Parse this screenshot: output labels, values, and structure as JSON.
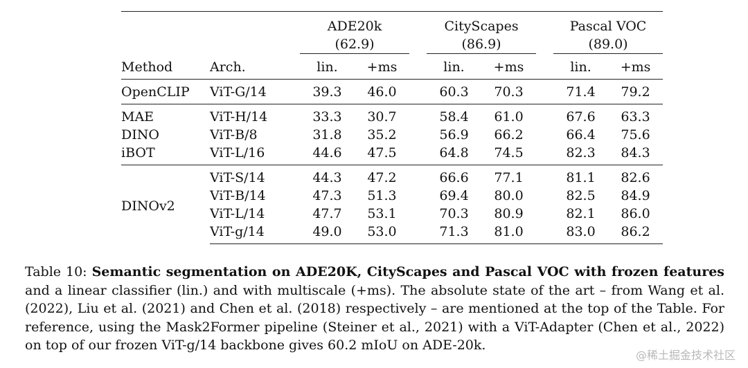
{
  "table": {
    "datasets": [
      {
        "name": "ADE20k",
        "sota": "(62.9)"
      },
      {
        "name": "CityScapes",
        "sota": "(86.9)"
      },
      {
        "name": "Pascal VOC",
        "sota": "(89.0)"
      }
    ],
    "headers": {
      "method": "Method",
      "arch": "Arch.",
      "lin": "lin.",
      "ms": "+ms"
    },
    "groups": [
      {
        "method": "OpenCLIP",
        "rows": [
          {
            "method": "OpenCLIP",
            "arch": "ViT-G/14",
            "values": [
              "39.3",
              "46.0",
              "60.3",
              "70.3",
              "71.4",
              "79.2"
            ]
          }
        ]
      },
      {
        "rows": [
          {
            "method": "MAE",
            "arch": "ViT-H/14",
            "values": [
              "33.3",
              "30.7",
              "58.4",
              "61.0",
              "67.6",
              "63.3"
            ]
          },
          {
            "method": "DINO",
            "arch": "ViT-B/8",
            "values": [
              "31.8",
              "35.2",
              "56.9",
              "66.2",
              "66.4",
              "75.6"
            ]
          },
          {
            "method": "iBOT",
            "arch": "ViT-L/16",
            "values": [
              "44.6",
              "47.5",
              "64.8",
              "74.5",
              "82.3",
              "84.3"
            ]
          }
        ]
      },
      {
        "method": "DINOv2",
        "rows": [
          {
            "arch": "ViT-S/14",
            "values": [
              "44.3",
              "47.2",
              "66.6",
              "77.1",
              "81.1",
              "82.6"
            ]
          },
          {
            "arch": "ViT-B/14",
            "values": [
              "47.3",
              "51.3",
              "69.4",
              "80.0",
              "82.5",
              "84.9"
            ]
          },
          {
            "arch": "ViT-L/14",
            "values": [
              "47.7",
              "53.1",
              "70.3",
              "80.9",
              "82.1",
              "86.0"
            ]
          },
          {
            "arch": "ViT-g/14",
            "values": [
              "49.0",
              "53.0",
              "71.3",
              "81.0",
              "83.0",
              "86.2"
            ]
          }
        ]
      }
    ]
  },
  "caption": {
    "label": "Table 10: ",
    "title": "Semantic segmentation on ADE20K, CityScapes and Pascal VOC with frozen features",
    "body": " and a linear classifier (lin.) and with multiscale (+ms). The absolute state of the art – from Wang et al. (2022), Liu et al. (2021) and Chen et al. (2018) respectively – are mentioned at the top of the Table. For reference, using the Mask2Former pipeline (Steiner et al., 2021) with a ViT-Adapter (Chen et al., 2022) on top of our frozen ViT-g/14 backbone gives 60.2 mIoU on ADE-20k."
  },
  "watermark": "@稀土掘金技术社区"
}
